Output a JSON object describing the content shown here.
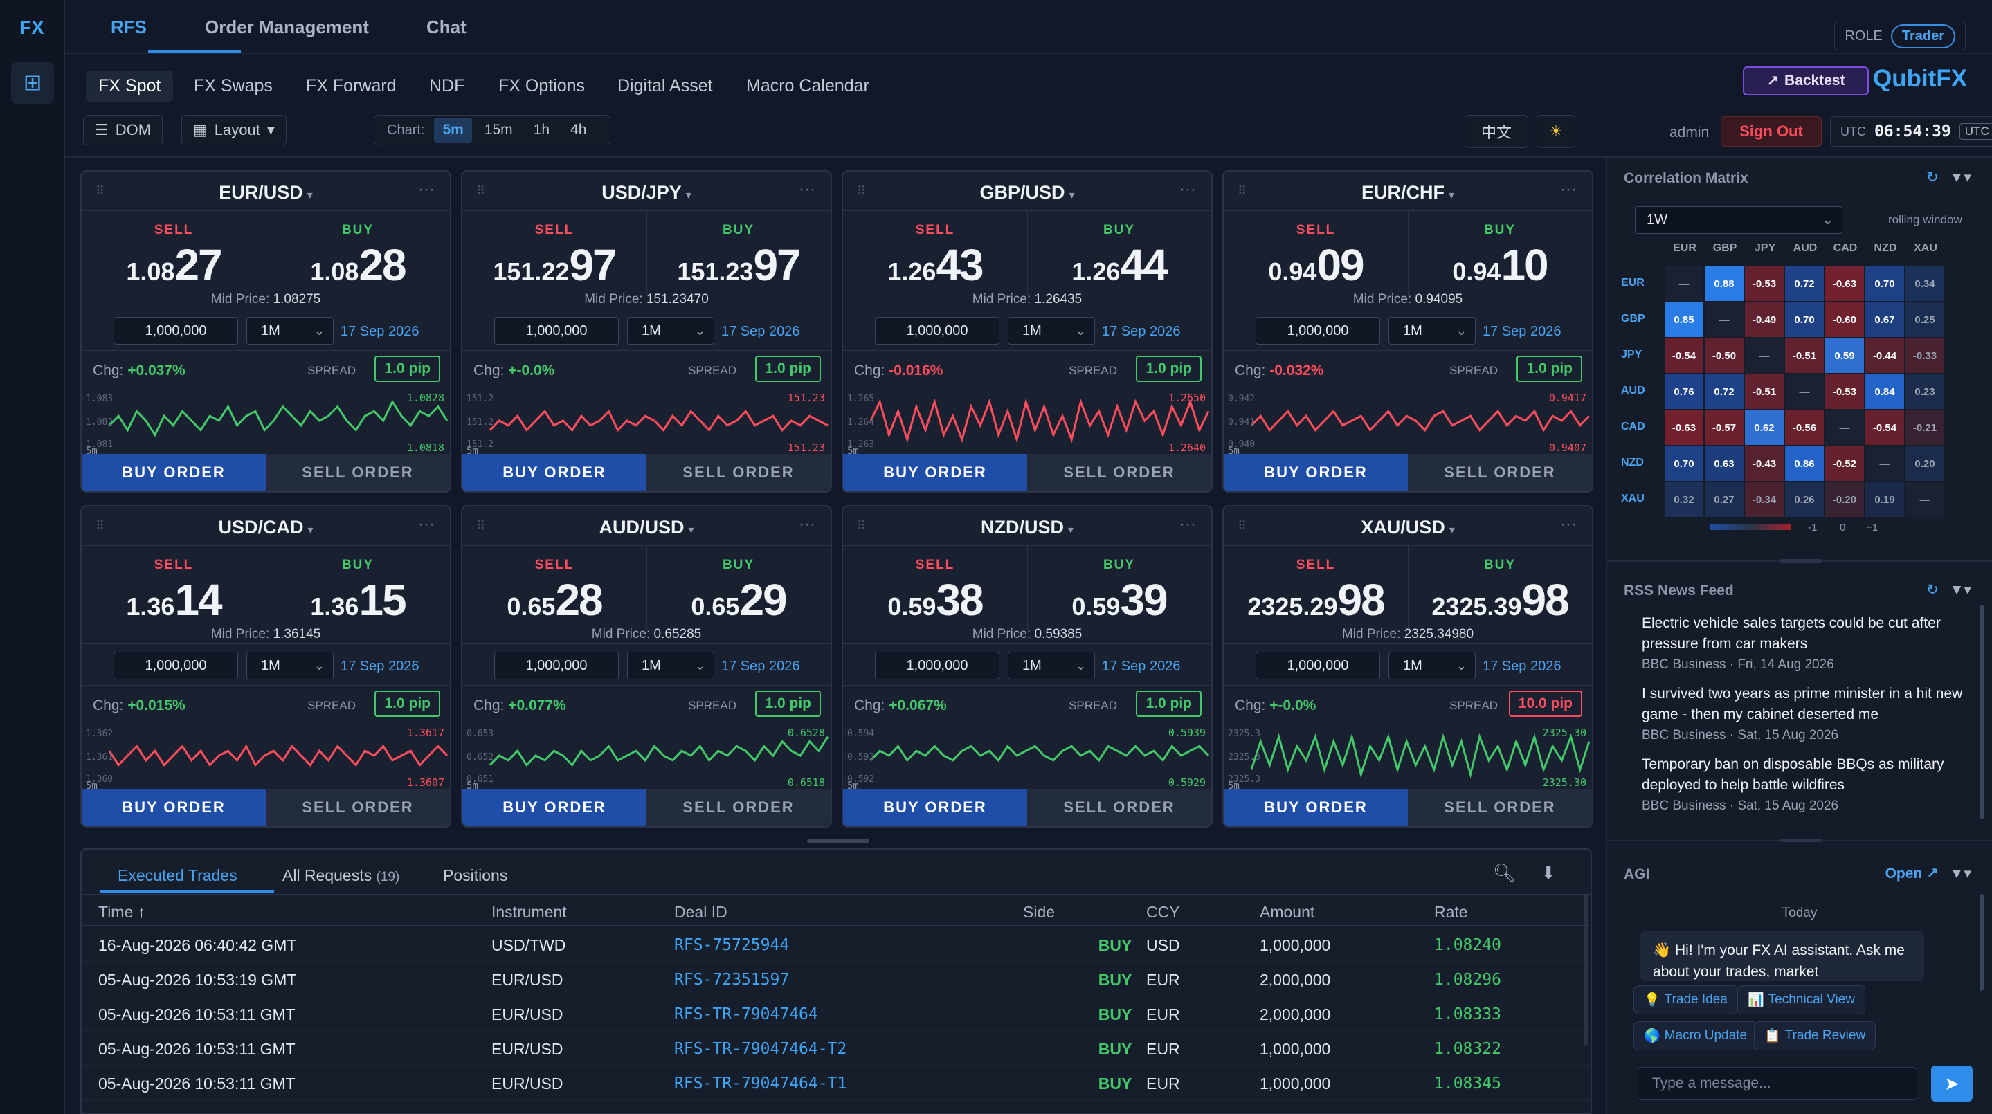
{
  "app": {
    "logo": "FX",
    "brand": "QubitFX",
    "role_label": "ROLE",
    "role_value": "Trader"
  },
  "nav": {
    "top_tabs": [
      "RFS",
      "Order Management",
      "Chat"
    ],
    "sub_tabs": [
      "FX Spot",
      "FX Swaps",
      "FX Forward",
      "NDF",
      "FX Options",
      "Digital Asset",
      "Macro Calendar"
    ],
    "backtest": "Backtest"
  },
  "toolbar": {
    "dom": "DOM",
    "layout": "Layout",
    "chart_label": "Chart:",
    "timeframes": [
      "5m",
      "15m",
      "1h",
      "4h"
    ],
    "lang": "中文",
    "theme_icon": "☀",
    "user": "admin",
    "sign_out": "Sign Out",
    "utc_label": "UTC",
    "clock": "06:54:39",
    "utc_badge": "UTC"
  },
  "colors": {
    "up": "#43c86a",
    "down": "#ff4d5d",
    "accent": "#2f8ceb",
    "brand": "#3fa6f5"
  },
  "labels": {
    "sell": "SELL",
    "buy": "BUY",
    "mid_prefix": "Mid Price:",
    "chg_prefix": "Chg:",
    "spread": "SPREAD",
    "buy_order": "BUY ORDER",
    "sell_order": "SELL ORDER",
    "axis_footer": "5m"
  },
  "tiles": [
    {
      "pair": "EUR/USD",
      "sell_small": "1.08",
      "sell_big": "27",
      "buy_small": "1.08",
      "buy_big": "28",
      "mid": "1.08275",
      "amount": "1,000,000",
      "tenor": "1M",
      "value_date": "17 Sep 2026",
      "chg": "+0.037%",
      "chg_dir": "up",
      "spread": "1.0 pip",
      "spread_alert": false,
      "hi": "1.0828",
      "lo": "1.0818",
      "ax_top": "1.083",
      "ax_mid": "1.082",
      "ax_bot": "1.081",
      "trend": "up",
      "series": [
        0.4,
        0.6,
        0.3,
        0.7,
        0.5,
        0.2,
        0.6,
        0.4,
        0.7,
        0.5,
        0.3,
        0.6,
        0.5,
        0.8,
        0.4,
        0.6,
        0.7,
        0.3,
        0.5,
        0.8,
        0.6,
        0.4,
        0.7,
        0.5,
        0.6,
        0.8,
        0.5,
        0.3,
        0.6,
        0.7,
        0.5,
        0.9,
        0.6,
        0.4,
        0.7,
        0.6,
        0.8,
        0.5
      ]
    },
    {
      "pair": "USD/JPY",
      "sell_small": "151.22",
      "sell_big": "97",
      "buy_small": "151.23",
      "buy_big": "97",
      "mid": "151.23470",
      "amount": "1,000,000",
      "tenor": "1M",
      "value_date": "17 Sep 2026",
      "chg": "+-0.0%",
      "chg_dir": "up",
      "spread": "1.0 pip",
      "spread_alert": false,
      "hi": "151.23",
      "lo": "151.23",
      "ax_top": "151.2",
      "ax_mid": "151.2",
      "ax_bot": "151.2",
      "trend": "down",
      "series": [
        0.3,
        0.5,
        0.4,
        0.6,
        0.3,
        0.5,
        0.7,
        0.4,
        0.5,
        0.3,
        0.6,
        0.4,
        0.5,
        0.7,
        0.3,
        0.5,
        0.4,
        0.6,
        0.5,
        0.3,
        0.6,
        0.4,
        0.7,
        0.5,
        0.3,
        0.6,
        0.4,
        0.5,
        0.7,
        0.4,
        0.5,
        0.6,
        0.3,
        0.5,
        0.4,
        0.6,
        0.5,
        0.4
      ]
    },
    {
      "pair": "GBP/USD",
      "sell_small": "1.26",
      "sell_big": "43",
      "buy_small": "1.26",
      "buy_big": "44",
      "mid": "1.26435",
      "amount": "1,000,000",
      "tenor": "1M",
      "value_date": "17 Sep 2026",
      "chg": "-0.016%",
      "chg_dir": "down",
      "spread": "1.0 pip",
      "spread_alert": false,
      "hi": "1.2650",
      "lo": "1.2640",
      "ax_top": "1.265",
      "ax_mid": "1.264",
      "ax_bot": "1.263",
      "trend": "down",
      "series": [
        0.5,
        0.9,
        0.2,
        0.7,
        0.1,
        0.8,
        0.3,
        0.9,
        0.2,
        0.6,
        0.1,
        0.8,
        0.4,
        0.9,
        0.2,
        0.7,
        0.1,
        0.9,
        0.3,
        0.8,
        0.2,
        0.6,
        0.1,
        0.9,
        0.4,
        0.7,
        0.2,
        0.8,
        0.3,
        0.9,
        0.5,
        0.7,
        0.2,
        0.8,
        0.4,
        0.9,
        0.3,
        0.7
      ]
    },
    {
      "pair": "EUR/CHF",
      "sell_small": "0.94",
      "sell_big": "09",
      "buy_small": "0.94",
      "buy_big": "10",
      "mid": "0.94095",
      "amount": "1,000,000",
      "tenor": "1M",
      "value_date": "17 Sep 2026",
      "chg": "-0.032%",
      "chg_dir": "down",
      "spread": "1.0 pip",
      "spread_alert": false,
      "hi": "0.9417",
      "lo": "0.9407",
      "ax_top": "0.942",
      "ax_mid": "0.941",
      "ax_bot": "0.940",
      "trend": "down",
      "series": [
        0.4,
        0.6,
        0.3,
        0.5,
        0.7,
        0.4,
        0.6,
        0.3,
        0.5,
        0.7,
        0.4,
        0.5,
        0.6,
        0.3,
        0.5,
        0.7,
        0.4,
        0.6,
        0.5,
        0.3,
        0.6,
        0.7,
        0.4,
        0.5,
        0.6,
        0.3,
        0.5,
        0.7,
        0.4,
        0.6,
        0.5,
        0.7,
        0.3,
        0.6,
        0.5,
        0.7,
        0.4,
        0.6
      ]
    },
    {
      "pair": "USD/CAD",
      "sell_small": "1.36",
      "sell_big": "14",
      "buy_small": "1.36",
      "buy_big": "15",
      "mid": "1.36145",
      "amount": "1,000,000",
      "tenor": "1M",
      "value_date": "17 Sep 2026",
      "chg": "+0.015%",
      "chg_dir": "up",
      "spread": "1.0 pip",
      "spread_alert": false,
      "hi": "1.3617",
      "lo": "1.3607",
      "ax_top": "1.362",
      "ax_mid": "1.361",
      "ax_bot": "1.360",
      "trend": "down",
      "series": [
        0.6,
        0.3,
        0.5,
        0.7,
        0.4,
        0.6,
        0.3,
        0.5,
        0.7,
        0.4,
        0.6,
        0.3,
        0.5,
        0.6,
        0.4,
        0.7,
        0.3,
        0.5,
        0.6,
        0.4,
        0.7,
        0.5,
        0.3,
        0.6,
        0.4,
        0.7,
        0.5,
        0.3,
        0.6,
        0.5,
        0.7,
        0.4,
        0.5,
        0.6,
        0.3,
        0.5,
        0.7,
        0.5
      ]
    },
    {
      "pair": "AUD/USD",
      "sell_small": "0.65",
      "sell_big": "28",
      "buy_small": "0.65",
      "buy_big": "29",
      "mid": "0.65285",
      "amount": "1,000,000",
      "tenor": "1M",
      "value_date": "17 Sep 2026",
      "chg": "+0.077%",
      "chg_dir": "up",
      "spread": "1.0 pip",
      "spread_alert": false,
      "hi": "0.6528",
      "lo": "0.6518",
      "ax_top": "0.653",
      "ax_mid": "0.652",
      "ax_bot": "0.651",
      "trend": "up",
      "series": [
        0.3,
        0.5,
        0.4,
        0.6,
        0.3,
        0.5,
        0.4,
        0.6,
        0.5,
        0.3,
        0.6,
        0.4,
        0.5,
        0.7,
        0.4,
        0.5,
        0.6,
        0.4,
        0.7,
        0.5,
        0.4,
        0.6,
        0.5,
        0.7,
        0.4,
        0.6,
        0.5,
        0.7,
        0.6,
        0.4,
        0.7,
        0.5,
        0.8,
        0.6,
        0.5,
        0.8,
        0.6,
        0.9
      ]
    },
    {
      "pair": "NZD/USD",
      "sell_small": "0.59",
      "sell_big": "38",
      "buy_small": "0.59",
      "buy_big": "39",
      "mid": "0.59385",
      "amount": "1,000,000",
      "tenor": "1M",
      "value_date": "17 Sep 2026",
      "chg": "+0.067%",
      "chg_dir": "up",
      "spread": "1.0 pip",
      "spread_alert": false,
      "hi": "0.5939",
      "lo": "0.5929",
      "ax_top": "0.594",
      "ax_mid": "0.593",
      "ax_bot": "0.592",
      "trend": "up",
      "series": [
        0.4,
        0.6,
        0.5,
        0.7,
        0.4,
        0.6,
        0.5,
        0.7,
        0.5,
        0.4,
        0.6,
        0.7,
        0.5,
        0.6,
        0.4,
        0.7,
        0.5,
        0.6,
        0.7,
        0.5,
        0.4,
        0.6,
        0.7,
        0.5,
        0.6,
        0.4,
        0.7,
        0.6,
        0.5,
        0.7,
        0.5,
        0.6,
        0.4,
        0.7,
        0.5,
        0.6,
        0.7,
        0.5
      ]
    },
    {
      "pair": "XAU/USD",
      "sell_small": "2325.29",
      "sell_big": "98",
      "buy_small": "2325.39",
      "buy_big": "98",
      "mid": "2325.34980",
      "amount": "1,000,000",
      "tenor": "1M",
      "value_date": "17 Sep 2026",
      "chg": "+-0.0%",
      "chg_dir": "up",
      "spread": "10.0 pip",
      "spread_alert": true,
      "hi": "2325.30",
      "lo": "2325.30",
      "ax_top": "2325.3",
      "ax_mid": "2325.3",
      "ax_bot": "2325.3",
      "trend": "up",
      "series": [
        0.2,
        0.8,
        0.3,
        0.9,
        0.2,
        0.7,
        0.4,
        0.9,
        0.2,
        0.8,
        0.3,
        0.9,
        0.1,
        0.7,
        0.4,
        0.9,
        0.2,
        0.8,
        0.3,
        0.7,
        0.2,
        0.9,
        0.3,
        0.8,
        0.1,
        0.9,
        0.4,
        0.7,
        0.2,
        0.8,
        0.3,
        0.9,
        0.2,
        0.7,
        0.4,
        0.9,
        0.2,
        0.8
      ]
    }
  ],
  "trades": {
    "tabs": [
      {
        "label": "Executed Trades",
        "count": ""
      },
      {
        "label": "All Requests",
        "count": "(19)"
      },
      {
        "label": "Positions",
        "count": ""
      }
    ],
    "columns": [
      "Time ↑",
      "Instrument",
      "Deal ID",
      "Side",
      "CCY",
      "Amount",
      "Rate"
    ],
    "rows": [
      {
        "time": "16-Aug-2026 06:40:42 GMT",
        "instrument": "USD/TWD",
        "deal_id": "RFS-75725944",
        "side": "BUY",
        "ccy": "USD",
        "amount": "1,000,000",
        "rate": "1.08240"
      },
      {
        "time": "05-Aug-2026 10:53:19 GMT",
        "instrument": "EUR/USD",
        "deal_id": "RFS-72351597",
        "side": "BUY",
        "ccy": "EUR",
        "amount": "2,000,000",
        "rate": "1.08296"
      },
      {
        "time": "05-Aug-2026 10:53:11 GMT",
        "instrument": "EUR/USD",
        "deal_id": "RFS-TR-79047464",
        "side": "BUY",
        "ccy": "EUR",
        "amount": "2,000,000",
        "rate": "1.08333"
      },
      {
        "time": "05-Aug-2026 10:53:11 GMT",
        "instrument": "EUR/USD",
        "deal_id": "RFS-TR-79047464-T2",
        "side": "BUY",
        "ccy": "EUR",
        "amount": "1,000,000",
        "rate": "1.08322"
      },
      {
        "time": "05-Aug-2026 10:53:11 GMT",
        "instrument": "EUR/USD",
        "deal_id": "RFS-TR-79047464-T1",
        "side": "BUY",
        "ccy": "EUR",
        "amount": "1,000,000",
        "rate": "1.08345"
      }
    ]
  },
  "correlation": {
    "title": "Correlation Matrix",
    "window": "1W",
    "window_note": "rolling window",
    "currencies": [
      "EUR",
      "GBP",
      "JPY",
      "AUD",
      "CAD",
      "NZD",
      "XAU"
    ],
    "diag": "—",
    "values": [
      [
        "—",
        "0.88",
        "-0.53",
        "0.72",
        "-0.63",
        "0.70",
        "0.34"
      ],
      [
        "0.85",
        "—",
        "-0.49",
        "0.70",
        "-0.60",
        "0.67",
        "0.25"
      ],
      [
        "-0.54",
        "-0.50",
        "—",
        "-0.51",
        "0.59",
        "-0.44",
        "-0.33"
      ],
      [
        "0.76",
        "0.72",
        "-0.51",
        "—",
        "-0.53",
        "0.84",
        "0.23"
      ],
      [
        "-0.63",
        "-0.57",
        "0.62",
        "-0.56",
        "—",
        "-0.54",
        "-0.21"
      ],
      [
        "0.70",
        "0.63",
        "-0.43",
        "0.86",
        "-0.52",
        "—",
        "0.20"
      ],
      [
        "0.32",
        "0.27",
        "-0.34",
        "0.26",
        "-0.20",
        "0.19",
        "—"
      ]
    ],
    "legend": [
      "-1",
      "0",
      "+1"
    ]
  },
  "news": {
    "title": "RSS News Feed",
    "items": [
      {
        "headline": "Electric vehicle sales targets could be cut after pressure from car makers",
        "meta": "BBC Business · Fri, 14 Aug 2026"
      },
      {
        "headline": "I survived two years as prime minister in a hit new game - then my cabinet deserted me",
        "meta": "BBC Business · Sat, 15 Aug 2026"
      },
      {
        "headline": "Temporary ban on disposable BBQs as military deployed to help battle wildfires",
        "meta": "BBC Business · Sat, 15 Aug 2026"
      }
    ]
  },
  "agi": {
    "title": "AGI",
    "open": "Open ↗",
    "today": "Today",
    "greeting": "👋 Hi! I'm your FX AI assistant. Ask me about your trades, market",
    "chips": [
      {
        "icon": "💡",
        "label": "Trade Idea"
      },
      {
        "icon": "📊",
        "label": "Technical View"
      },
      {
        "icon": "🌎",
        "label": "Macro Update"
      },
      {
        "icon": "📋",
        "label": "Trade Review"
      }
    ],
    "placeholder": "Type a message..."
  }
}
